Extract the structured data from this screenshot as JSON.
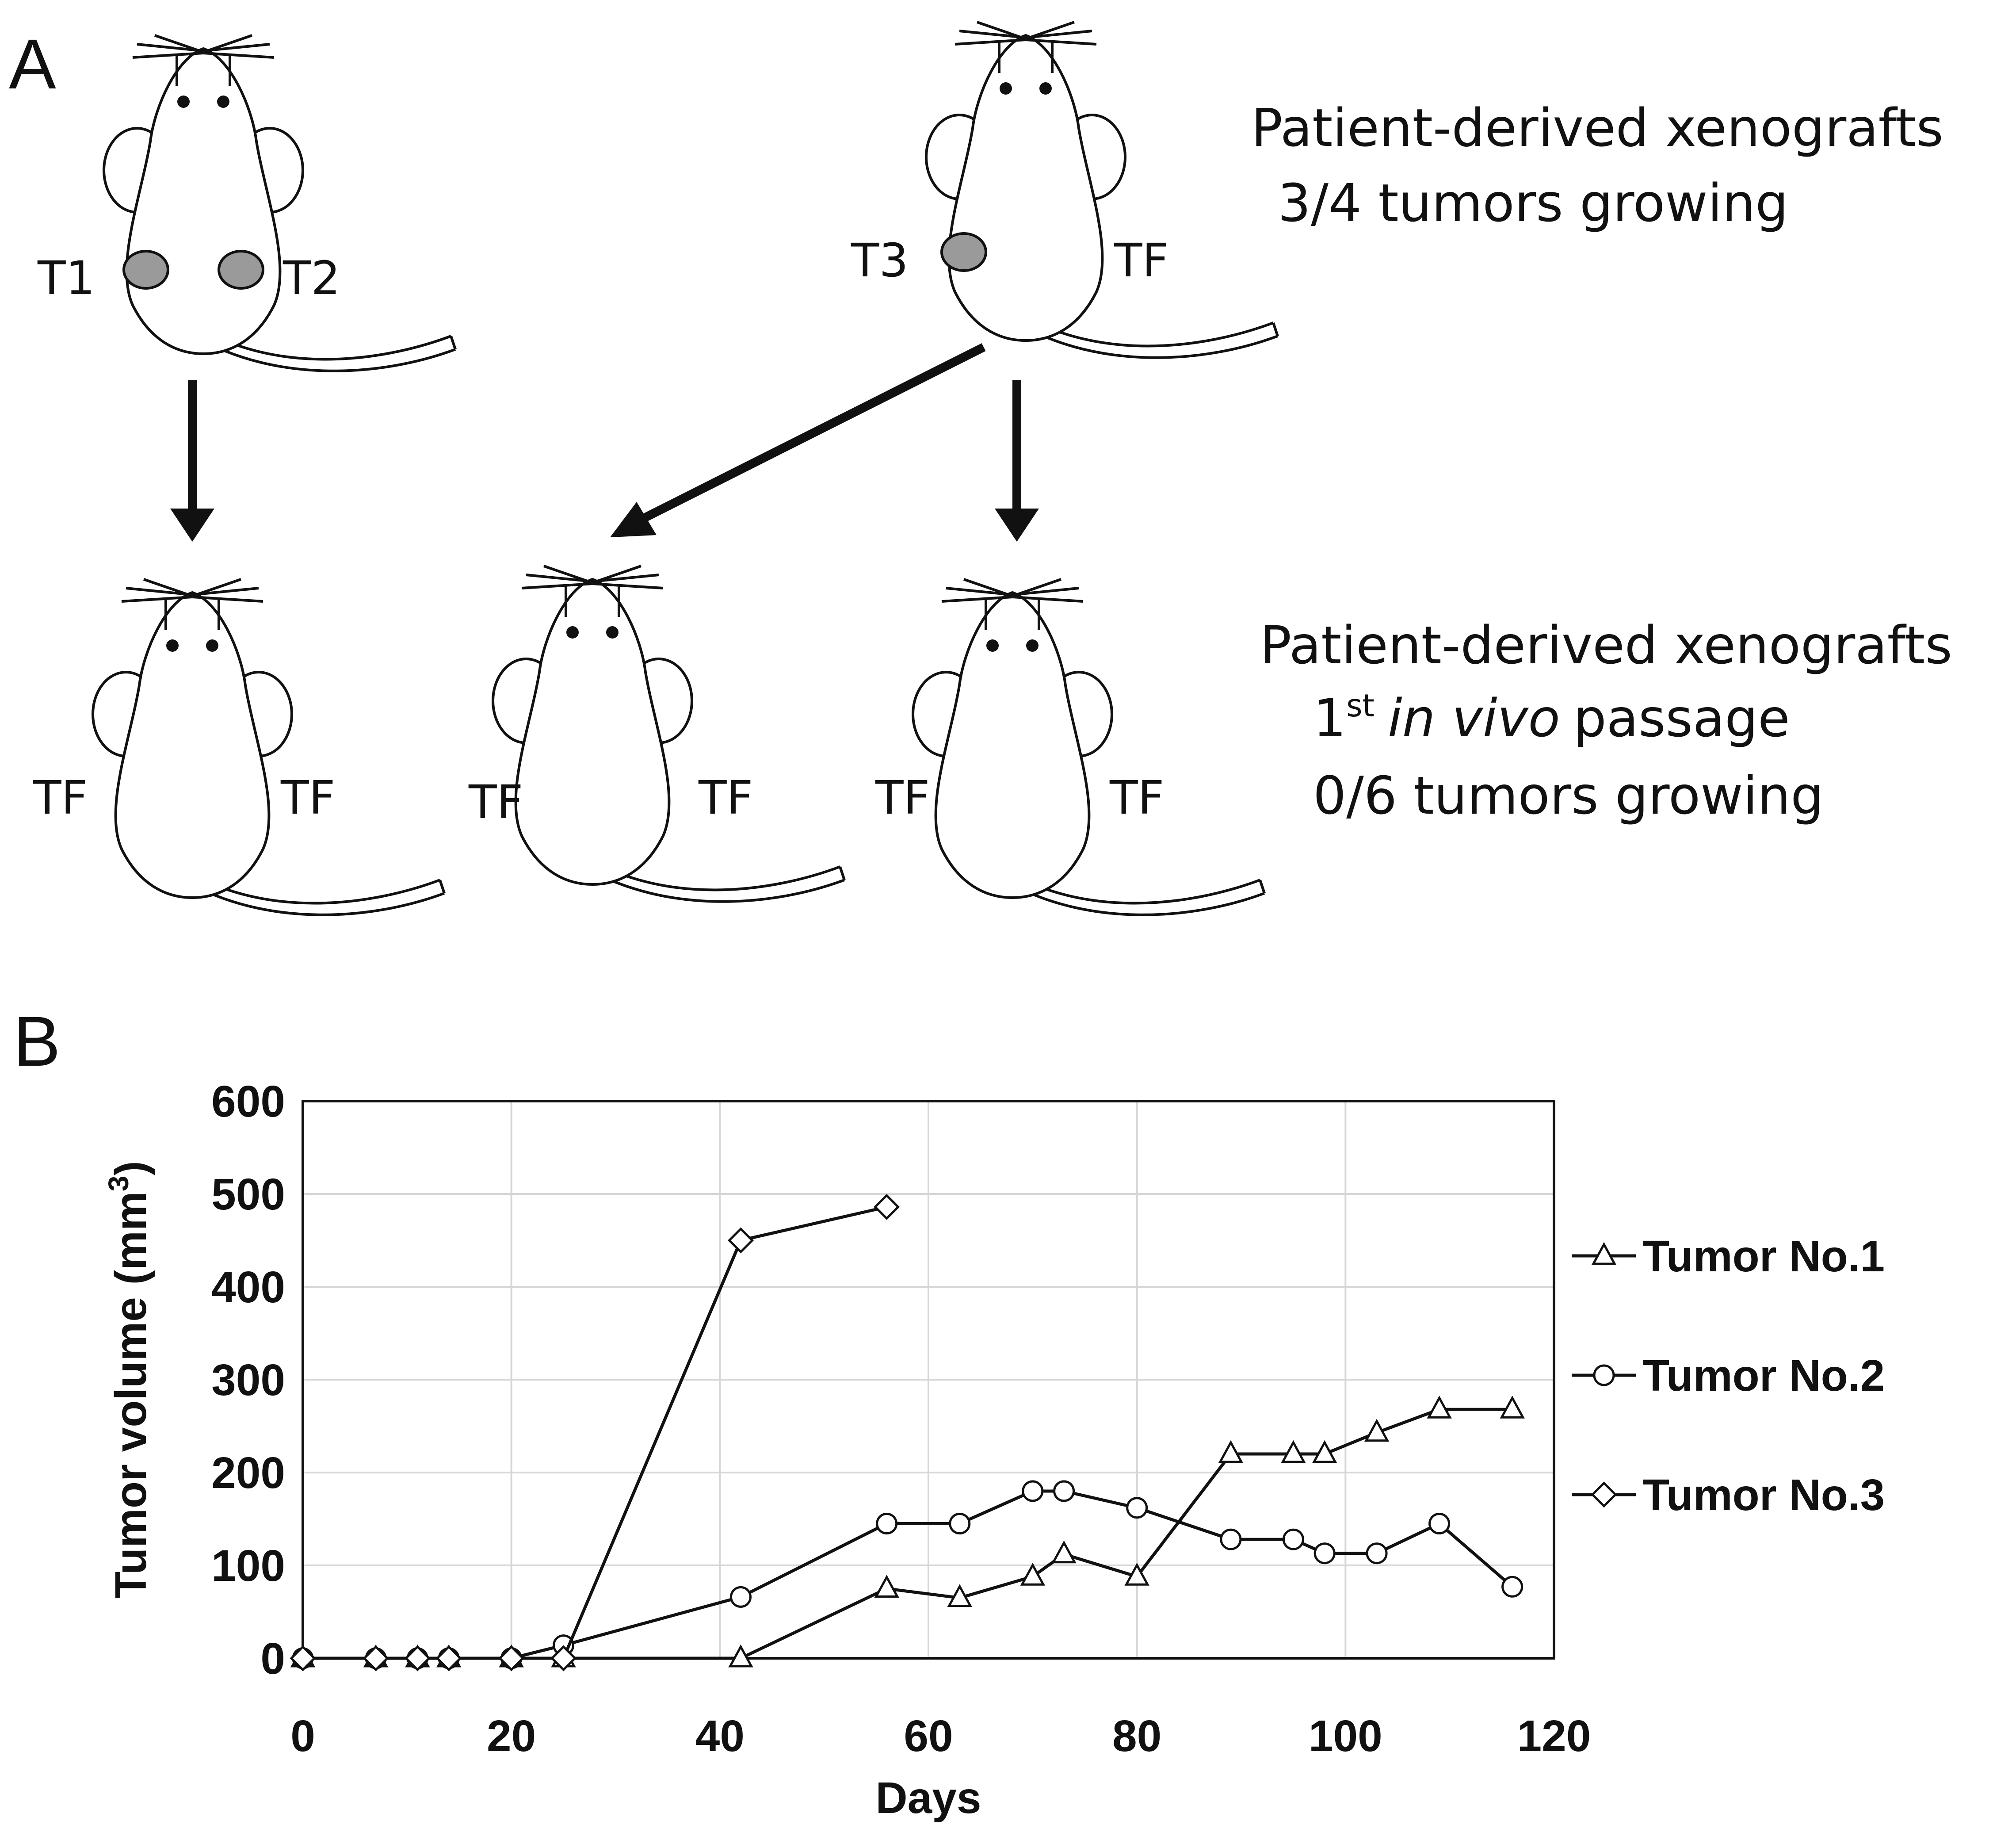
{
  "panel_a": {
    "letter": "A",
    "group1": {
      "title": "Patient-derived xenografts",
      "line1": "3/4 tumors growing"
    },
    "group2": {
      "title": "Patient-derived xenografts",
      "sup_prefix": "1",
      "sup": "st",
      "italic": "in vivo",
      "after": "passage",
      "line2": "0/6 tumors growing"
    },
    "mouse_labels": {
      "m1_left": "T1",
      "m1_right": "T2",
      "m2_left": "T3",
      "m2_right": "TF",
      "m3_left": "TF",
      "m3_right": "TF",
      "m4_left": "TF",
      "m4_right": "TF",
      "m5_left": "TF",
      "m5_right": "TF"
    },
    "colors": {
      "tumor": "#9a9a9a",
      "line": "#111111"
    }
  },
  "panel_b": {
    "letter": "B"
  },
  "chart_data": {
    "type": "line",
    "xlabel": "Days",
    "ylabel": "Tumor volume (mm",
    "ylabel_sup": "3",
    "ylabel_close": ")",
    "xlim": [
      0,
      120
    ],
    "ylim": [
      0,
      600
    ],
    "xticks": [
      0,
      20,
      40,
      60,
      80,
      100,
      120
    ],
    "yticks": [
      0,
      100,
      200,
      300,
      400,
      500,
      600
    ],
    "grid": true,
    "legend_position": "right",
    "series": [
      {
        "name": "Tumor No.1",
        "marker": "triangle",
        "x": [
          0,
          7,
          11,
          14,
          20,
          25,
          42,
          56,
          63,
          70,
          73,
          80,
          89,
          95,
          98,
          103,
          109,
          116
        ],
        "y": [
          0,
          0,
          0,
          0,
          0,
          0,
          0,
          75,
          65,
          88,
          112,
          88,
          220,
          220,
          220,
          243,
          268,
          268
        ]
      },
      {
        "name": "Tumor No.2",
        "marker": "circle",
        "x": [
          0,
          7,
          11,
          14,
          20,
          25,
          42,
          56,
          63,
          70,
          73,
          80,
          89,
          95,
          98,
          103,
          109,
          116
        ],
        "y": [
          0,
          0,
          0,
          0,
          0,
          14,
          66,
          145,
          145,
          180,
          180,
          162,
          128,
          128,
          113,
          113,
          145,
          77
        ]
      },
      {
        "name": "Tumor No.3",
        "marker": "diamond",
        "x": [
          0,
          7,
          11,
          14,
          20,
          25,
          42,
          56
        ],
        "y": [
          0,
          0,
          0,
          0,
          0,
          0,
          450,
          486
        ]
      }
    ]
  }
}
